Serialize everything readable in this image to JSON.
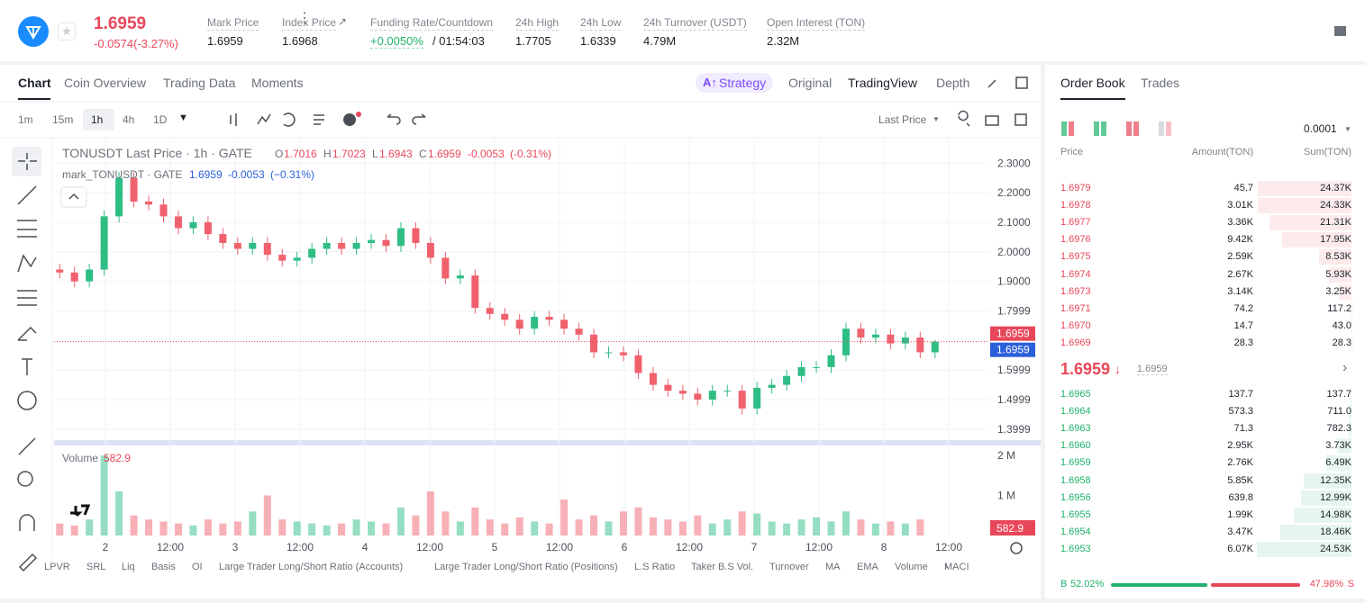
{
  "header": {
    "price": "1.6959",
    "change": "-0.0574(-3.27%)",
    "stats": [
      {
        "label": "Mark Price",
        "value": "1.6959"
      },
      {
        "label": "Index Price",
        "value": "1.6968"
      },
      {
        "label": "Funding Rate/Countdown",
        "value": "+0.0050%",
        "extra": "/ 01:54:03"
      },
      {
        "label": "24h High",
        "value": "1.7705"
      },
      {
        "label": "24h Low",
        "value": "1.6339"
      },
      {
        "label": "24h Turnover (USDT)",
        "value": "4.79M"
      },
      {
        "label": "Open Interest (TON)",
        "value": "2.32M"
      }
    ]
  },
  "tabs": [
    "Chart",
    "Coin Overview",
    "Trading Data",
    "Moments"
  ],
  "views": [
    "Strategy",
    "Original",
    "TradingView",
    "Depth"
  ],
  "intervals": [
    "1m",
    "15m",
    "1h",
    "4h",
    "1D"
  ],
  "price_source": "Last Price",
  "legend": {
    "title": "TONUSDT Last Price · 1h · GATE",
    "ohlc": [
      [
        "O",
        "1.7016"
      ],
      [
        "H",
        "1.7023"
      ],
      [
        "L",
        "1.6943"
      ],
      [
        "C",
        "1.6959"
      ]
    ],
    "change": "-0.0053",
    "change_pct": "(-0.31%)"
  },
  "mark_legend": {
    "title": "mark_TONUSDT · GATE",
    "price": "1.6959",
    "change": "-0.0053",
    "change_pct": "(−0.31%)"
  },
  "volume_legend": {
    "title": "Volume",
    "value": "582.9"
  },
  "indicators": [
    "LPVR",
    "SRL",
    "Liq",
    "Basis",
    "OI",
    "Large Trader Long/Short Ratio (Accounts)",
    "Large Trader Long/Short Ratio (Positions)",
    "L.S Ratio",
    "Taker B.S Vol.",
    "Turnover",
    "MA",
    "EMA",
    "Volume",
    "MACI"
  ],
  "chart_data": {
    "type": "candlestick",
    "open": [
      1.94,
      1.93,
      1.9,
      1.94,
      2.12,
      2.25,
      2.17,
      2.16,
      2.12,
      2.08,
      2.1,
      2.06,
      2.03,
      2.01,
      2.03,
      1.99,
      1.97,
      1.98,
      2.01,
      2.03,
      2.01,
      2.03,
      2.04,
      2.02,
      2.08,
      2.03,
      1.98,
      1.91,
      1.92,
      1.81,
      1.79,
      1.77,
      1.74,
      1.78,
      1.77,
      1.74,
      1.72,
      1.66,
      1.66,
      1.65,
      1.59,
      1.55,
      1.53,
      1.52,
      1.5,
      1.53,
      1.53,
      1.47,
      1.54,
      1.55,
      1.58,
      1.61,
      1.61,
      1.65,
      1.74,
      1.71,
      1.72,
      1.69,
      1.71,
      1.66
    ],
    "high": [
      1.96,
      1.95,
      1.96,
      2.14,
      2.27,
      2.27,
      2.19,
      2.18,
      2.14,
      2.12,
      2.12,
      2.08,
      2.05,
      2.05,
      2.05,
      2.01,
      2.0,
      2.03,
      2.05,
      2.05,
      2.05,
      2.06,
      2.06,
      2.1,
      2.1,
      2.05,
      2.0,
      1.94,
      1.94,
      1.83,
      1.81,
      1.79,
      1.8,
      1.8,
      1.79,
      1.76,
      1.74,
      1.68,
      1.68,
      1.67,
      1.61,
      1.57,
      1.55,
      1.54,
      1.55,
      1.55,
      1.55,
      1.56,
      1.57,
      1.6,
      1.63,
      1.63,
      1.67,
      1.76,
      1.76,
      1.74,
      1.74,
      1.73,
      1.73,
      1.7023
    ],
    "low": [
      1.91,
      1.88,
      1.88,
      1.92,
      2.1,
      2.15,
      2.14,
      2.1,
      2.06,
      2.06,
      2.04,
      2.01,
      1.99,
      1.99,
      1.97,
      1.95,
      1.95,
      1.96,
      1.99,
      1.99,
      1.99,
      2.01,
      2.0,
      2.0,
      2.01,
      1.96,
      1.89,
      1.89,
      1.79,
      1.77,
      1.75,
      1.72,
      1.72,
      1.75,
      1.72,
      1.7,
      1.64,
      1.64,
      1.63,
      1.57,
      1.53,
      1.51,
      1.5,
      1.48,
      1.48,
      1.51,
      1.45,
      1.45,
      1.52,
      1.53,
      1.56,
      1.59,
      1.59,
      1.63,
      1.69,
      1.69,
      1.67,
      1.67,
      1.64,
      1.64
    ],
    "close": [
      1.93,
      1.9,
      1.94,
      2.12,
      2.25,
      2.17,
      2.16,
      2.12,
      2.08,
      2.1,
      2.06,
      2.03,
      2.01,
      2.03,
      1.99,
      1.97,
      1.98,
      2.01,
      2.03,
      2.01,
      2.03,
      2.04,
      2.02,
      2.08,
      2.03,
      1.98,
      1.91,
      1.92,
      1.81,
      1.79,
      1.77,
      1.74,
      1.78,
      1.77,
      1.74,
      1.72,
      1.66,
      1.66,
      1.65,
      1.59,
      1.55,
      1.53,
      1.52,
      1.5,
      1.53,
      1.53,
      1.47,
      1.54,
      1.55,
      1.58,
      1.61,
      1.61,
      1.65,
      1.74,
      1.71,
      1.72,
      1.69,
      1.71,
      1.66,
      1.6959
    ],
    "volume": [
      300000,
      250000,
      400000,
      2000000,
      1100000,
      500000,
      400000,
      350000,
      300000,
      250000,
      400000,
      300000,
      350000,
      600000,
      1000000,
      400000,
      350000,
      300000,
      250000,
      300000,
      400000,
      350000,
      300000,
      700000,
      500000,
      1100000,
      600000,
      350000,
      700000,
      400000,
      300000,
      450000,
      350000,
      300000,
      900000,
      400000,
      500000,
      350000,
      600000,
      700000,
      450000,
      400000,
      350000,
      500000,
      300000,
      400000,
      600000,
      550000,
      350000,
      300000,
      400000,
      450000,
      350000,
      600000,
      400000,
      300000,
      350000,
      300000,
      400000,
      582.9
    ],
    "ylim": [
      1.36,
      2.38
    ],
    "yticks": [
      {
        "value": 2.3,
        "label": "2.3000"
      },
      {
        "value": 2.2,
        "label": "2.2000"
      },
      {
        "value": 2.1,
        "label": "2.1000"
      },
      {
        "value": 2.0,
        "label": "2.0000"
      },
      {
        "value": 1.9,
        "label": "1.9000"
      },
      1.7999,
      1.5999,
      1.4999,
      1.3999
    ],
    "vlim": [
      0,
      2200000
    ],
    "vticks": [
      {
        "value": 2000000,
        "label": "2 M"
      },
      {
        "value": 1000000,
        "label": "1 M"
      }
    ],
    "xlim": [
      0,
      173
    ],
    "xticks": [
      {
        "value": 9.5,
        "label": "2"
      },
      {
        "value": 21.5,
        "label": "12:00"
      },
      {
        "value": 33.5,
        "label": "3"
      },
      {
        "value": 45.5,
        "label": "12:00"
      },
      {
        "value": 57.5,
        "label": "4"
      },
      {
        "value": 69.5,
        "label": "12:00"
      },
      {
        "value": 81.5,
        "label": "5"
      },
      {
        "value": 93.5,
        "label": "12:00"
      },
      {
        "value": 105.5,
        "label": "6"
      },
      {
        "value": 117.5,
        "label": "12:00"
      },
      {
        "value": 129.5,
        "label": "7"
      },
      {
        "value": 141.5,
        "label": "12:00"
      },
      {
        "value": 153.5,
        "label": "8"
      },
      {
        "value": 165.5,
        "label": "12:00"
      }
    ],
    "last_price": 1.6959,
    "mark_price": 1.6959,
    "last_volume_label": "582.9",
    "up_color": "#2ebd85",
    "down_color": "#f0616d",
    "grid": true
  },
  "order_book": {
    "tabs": [
      "Order Book",
      "Trades"
    ],
    "precision": "0.0001",
    "columns": [
      "Price",
      "Amount(TON)",
      "Sum(TON)"
    ],
    "asks": [
      [
        "1.6979",
        "45.7",
        "24.37K"
      ],
      [
        "1.6978",
        "3.01K",
        "24.33K"
      ],
      [
        "1.6977",
        "3.36K",
        "21.31K"
      ],
      [
        "1.6976",
        "9.42K",
        "17.95K"
      ],
      [
        "1.6975",
        "2.59K",
        "8.53K"
      ],
      [
        "1.6974",
        "2.67K",
        "5.93K"
      ],
      [
        "1.6973",
        "3.14K",
        "3.25K"
      ],
      [
        "1.6971",
        "74.2",
        "117.2"
      ],
      [
        "1.6970",
        "14.7",
        "43.0"
      ],
      [
        "1.6969",
        "28.3",
        "28.3"
      ]
    ],
    "mid": "1.6959",
    "mid_mark": "1.6959",
    "bids": [
      [
        "1.6965",
        "137.7",
        "137.7"
      ],
      [
        "1.6964",
        "573.3",
        "711.0"
      ],
      [
        "1.6963",
        "71.3",
        "782.3"
      ],
      [
        "1.6960",
        "2.95K",
        "3.73K"
      ],
      [
        "1.6959",
        "2.76K",
        "6.49K"
      ],
      [
        "1.6958",
        "5.85K",
        "12.35K"
      ],
      [
        "1.6956",
        "639.8",
        "12.99K"
      ],
      [
        "1.6955",
        "1.99K",
        "14.98K"
      ],
      [
        "1.6954",
        "3.47K",
        "18.46K"
      ],
      [
        "1.6953",
        "6.07K",
        "24.53K"
      ]
    ],
    "buy_label": "B",
    "buy": 52.02,
    "buy_text": "52.02%",
    "sell": 47.98,
    "sell_text": "47.98%",
    "sell_label": "S"
  }
}
